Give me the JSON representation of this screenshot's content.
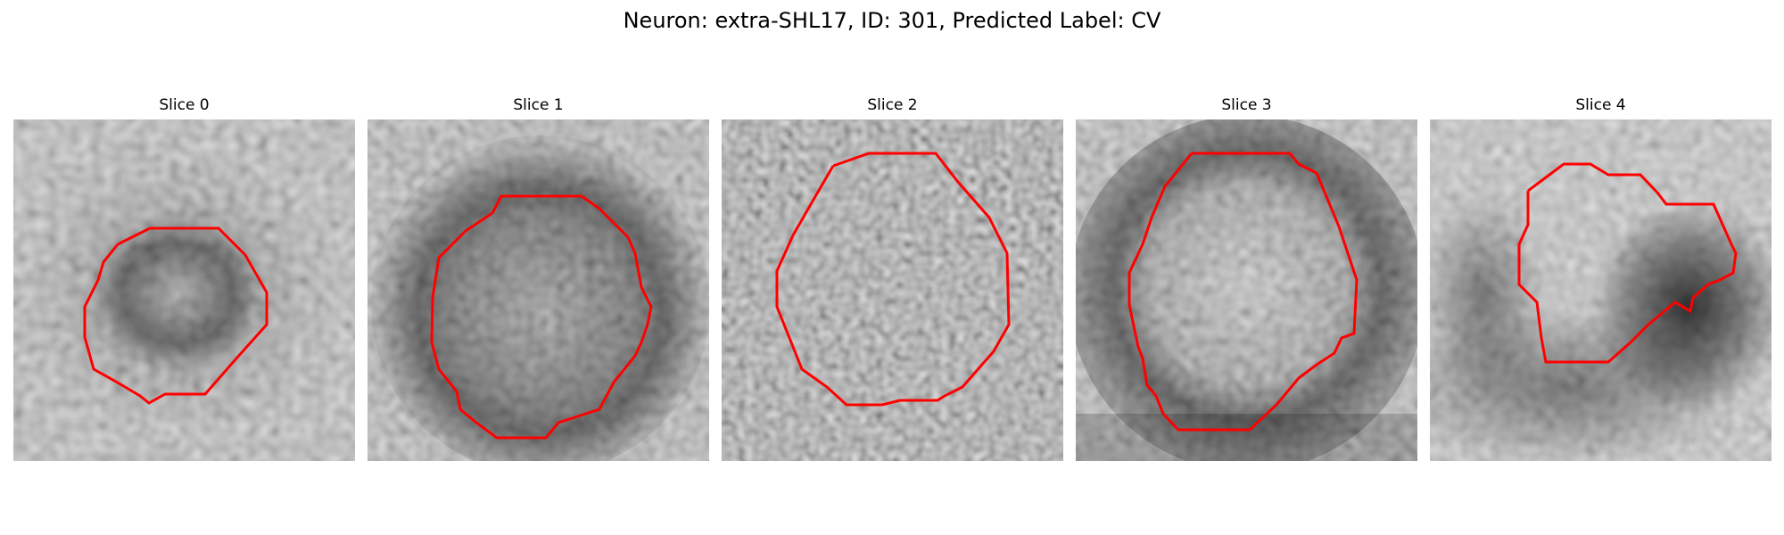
{
  "figure": {
    "title": "Neuron: extra-SHL17, ID: 301, Predicted Label: CV"
  },
  "panels": [
    {
      "title": "Slice 0",
      "contour_icon": "red-contour-outline"
    },
    {
      "title": "Slice 1",
      "contour_icon": "red-contour-outline"
    },
    {
      "title": "Slice 2",
      "contour_icon": "red-contour-outline"
    },
    {
      "title": "Slice 3",
      "contour_icon": "red-contour-outline"
    },
    {
      "title": "Slice 4",
      "contour_icon": "red-contour-outline"
    }
  ],
  "colors": {
    "contour": "#ff0000",
    "background": "#ffffff"
  },
  "image": {
    "colormap": "grayscale",
    "grid": "32x32 pixels per slice"
  }
}
